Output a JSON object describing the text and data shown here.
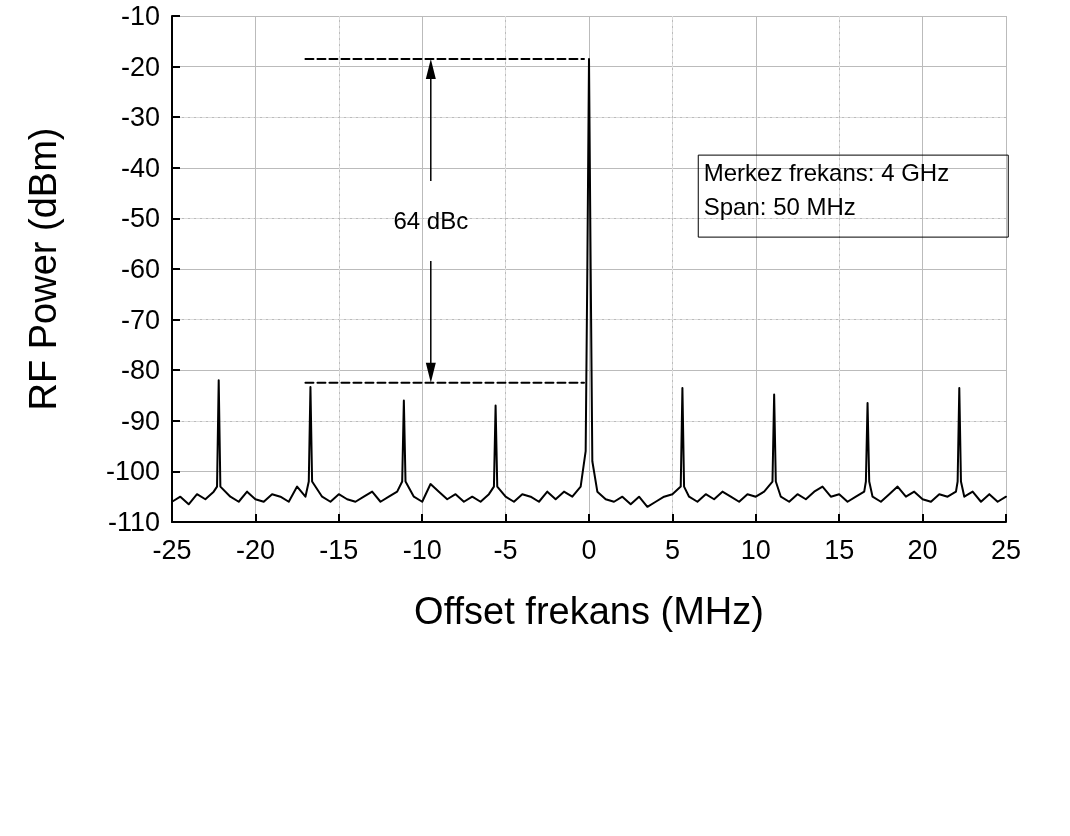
{
  "chart_data": {
    "type": "line",
    "xlabel": "Offset frekans (MHz)",
    "ylabel": "RF Power (dBm)",
    "xlim": [
      -25,
      25
    ],
    "xticks": [
      -25,
      -20,
      -15,
      -10,
      -5,
      0,
      5,
      10,
      15,
      20,
      25
    ],
    "ylim": [
      -110,
      -10
    ],
    "yticks": [
      -110,
      -100,
      -90,
      -80,
      -70,
      -60,
      -50,
      -40,
      -30,
      -20,
      -10
    ],
    "grid": true,
    "marker": "none",
    "line_style": "solid",
    "annotations": [
      "64 dBc",
      "Merkez frekans: 4 GHz",
      "Span: 50 MHz"
    ],
    "series": [
      {
        "color": "#000000",
        "x": [
          -25,
          -24.5,
          -24,
          -23.5,
          -23,
          -22.5,
          -22.3,
          -22.2,
          -22.1,
          -21.5,
          -21,
          -20.5,
          -20,
          -19.5,
          -19,
          -18.5,
          -18,
          -17.5,
          -17,
          -16.8,
          -16.7,
          -16.6,
          -16,
          -15.5,
          -15,
          -14.5,
          -14,
          -13.5,
          -13,
          -12.5,
          -12,
          -11.5,
          -11.2,
          -11.1,
          -11,
          -10.5,
          -10,
          -9.5,
          -9,
          -8.5,
          -8,
          -7.5,
          -7,
          -6.5,
          -6,
          -5.7,
          -5.6,
          -5.5,
          -5,
          -4.5,
          -4,
          -3.5,
          -3,
          -2.5,
          -2,
          -1.5,
          -1,
          -0.5,
          -0.2,
          -0.1,
          0,
          0.1,
          0.2,
          0.5,
          1,
          1.5,
          2,
          2.5,
          3,
          3.5,
          4,
          4.5,
          5,
          5.5,
          5.6,
          5.7,
          6,
          6.5,
          7,
          7.5,
          8,
          8.5,
          9,
          9.5,
          10,
          10.5,
          11,
          11.1,
          11.2,
          11.5,
          12,
          12.5,
          13,
          13.5,
          14,
          14.5,
          15,
          15.5,
          16,
          16.5,
          16.6,
          16.7,
          16.8,
          17,
          17.5,
          18,
          18.5,
          19,
          19.5,
          20,
          20.5,
          21,
          21.5,
          22,
          22.1,
          22.2,
          22.3,
          22.5,
          23,
          23.5,
          24,
          24.5,
          25
        ],
        "values": [
          -106,
          -105,
          -106.5,
          -104.5,
          -105.5,
          -104,
          -103,
          -82,
          -103,
          -105,
          -106,
          -104,
          -105.5,
          -106,
          -104.5,
          -105,
          -106,
          -103,
          -105,
          -102,
          -83.3,
          -102,
          -105,
          -106,
          -104.5,
          -105.5,
          -106,
          -105,
          -104,
          -106,
          -105,
          -104,
          -102,
          -86,
          -102,
          -105,
          -106,
          -102.5,
          -104,
          -105.5,
          -104.5,
          -106,
          -105,
          -106,
          -104.5,
          -103,
          -87,
          -103,
          -105,
          -106,
          -104.5,
          -105,
          -106,
          -104,
          -105.5,
          -104,
          -105,
          -103,
          -96,
          -60,
          -18.5,
          -60,
          -98,
          -104,
          -105.5,
          -106,
          -105,
          -106.5,
          -105,
          -107,
          -106,
          -105,
          -104.5,
          -103,
          -83.5,
          -103,
          -105,
          -106,
          -104.5,
          -105.5,
          -104,
          -105,
          -106,
          -104.5,
          -105,
          -104,
          -102,
          -84.8,
          -102,
          -105,
          -106,
          -104.5,
          -105.5,
          -104,
          -103,
          -105,
          -104.5,
          -106,
          -105,
          -104,
          -102,
          -86.5,
          -102,
          -105,
          -106,
          -104.5,
          -103,
          -105,
          -104,
          -105.5,
          -106,
          -104.5,
          -105,
          -104,
          -102,
          -83.5,
          -102,
          -105,
          -104,
          -106,
          -104.5,
          -106,
          -105
        ]
      },
      {
        "color": "#000000",
        "line_style": "dashed",
        "x": [
          -17,
          -0.3
        ],
        "values": [
          -18.5,
          -18.5
        ]
      },
      {
        "color": "#000000",
        "line_style": "dashed",
        "x": [
          -17,
          -0.3
        ],
        "values": [
          -82.5,
          -82.5
        ]
      }
    ]
  }
}
